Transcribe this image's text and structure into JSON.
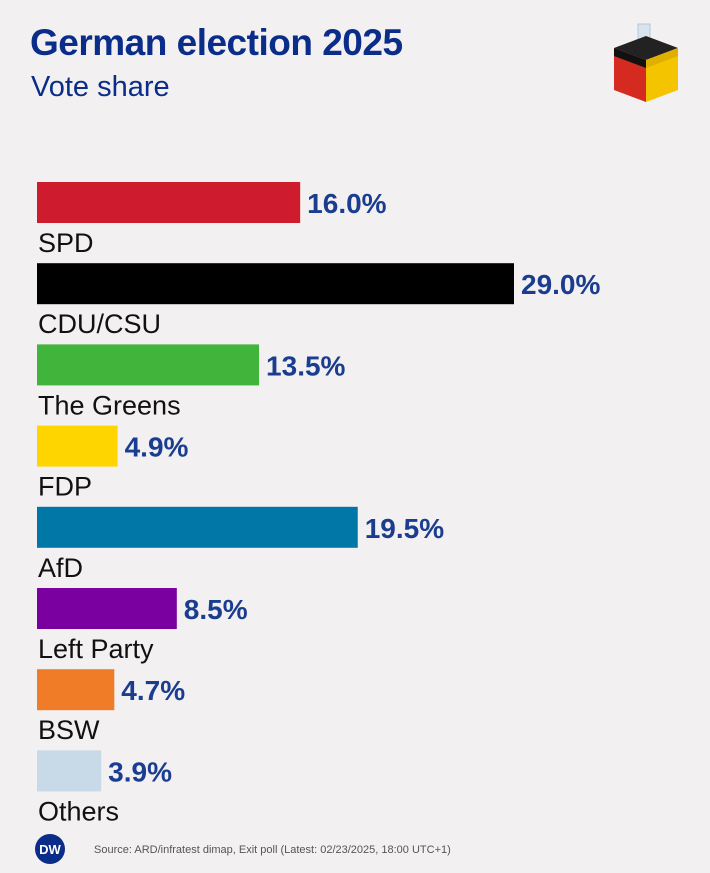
{
  "header": {
    "title": "German election 2025",
    "subtitle": "Vote share"
  },
  "footer": {
    "brand": "DW",
    "source": "Source: ARD/infratest dimap, Exit poll (Latest: 02/23/2025, 18:00 UTC+1)"
  },
  "icons": {
    "logo": "ballot-box-icon",
    "brand": "dw-logo-icon"
  },
  "colors": {
    "title": "#0b2d8a",
    "value_label": "#1a3d8f"
  },
  "chart_data": {
    "type": "bar",
    "orientation": "horizontal",
    "title": "German election 2025",
    "subtitle": "Vote share",
    "value_suffix": "%",
    "categories": [
      "SPD",
      "CDU/CSU",
      "The Greens",
      "FDP",
      "AfD",
      "Left Party",
      "BSW",
      "Others"
    ],
    "values": [
      16.0,
      29.0,
      13.5,
      4.9,
      19.5,
      8.5,
      4.7,
      3.9
    ],
    "value_labels": [
      "16.0%",
      "29.0%",
      "13.5%",
      "4.9%",
      "19.5%",
      "8.5%",
      "4.7%",
      "3.9%"
    ],
    "colors": [
      "#cf1b2e",
      "#000000",
      "#41b43c",
      "#ffd500",
      "#0077a6",
      "#7a00a0",
      "#f07c27",
      "#c8d9e8"
    ],
    "xlim": [
      0,
      29.0
    ],
    "grid": false,
    "legend": "none"
  }
}
